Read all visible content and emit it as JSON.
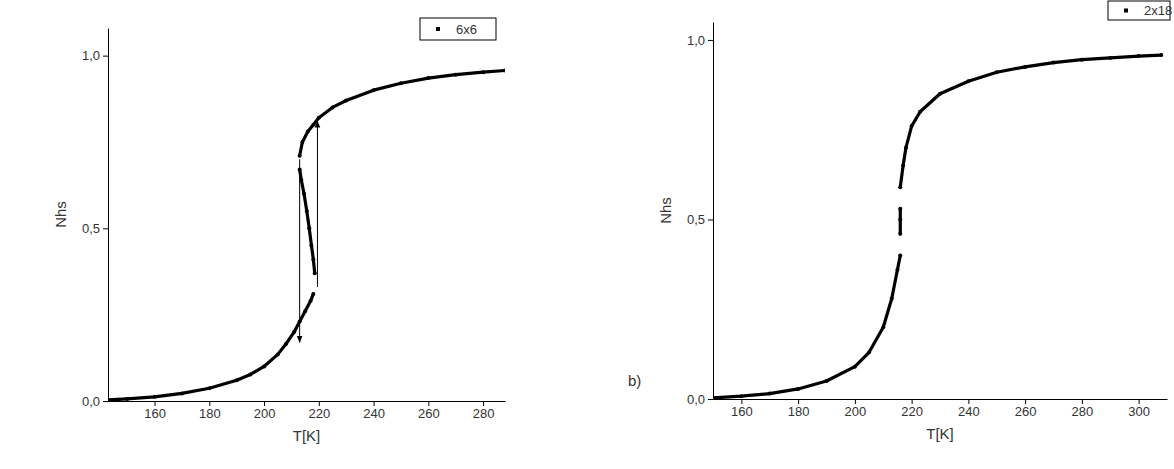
{
  "chart_data": [
    {
      "type": "scatter",
      "x_label": "T[K]",
      "y_label": "Nhs",
      "xlim": [
        143,
        288
      ],
      "ylim": [
        0,
        1.08
      ],
      "xticks": [
        160,
        180,
        200,
        220,
        240,
        260,
        280
      ],
      "yticks": [
        {
          "value": 0,
          "label": "0,0"
        },
        {
          "value": 0.5,
          "label": "0,5"
        },
        {
          "value": 1,
          "label": "1,0"
        }
      ],
      "legend": "upper right",
      "x": [
        143,
        150,
        160,
        170,
        180,
        190,
        195,
        200,
        205,
        208,
        211,
        213,
        215,
        217,
        218,
        null,
        218.5,
        218,
        217.3,
        216.5,
        215.6,
        214.6,
        213.6,
        213,
        null,
        213,
        214,
        216,
        218,
        220,
        225,
        230,
        240,
        250,
        260,
        270,
        280,
        288
      ],
      "series": [
        {
          "name": "6x6",
          "color": "#000000",
          "marker": "circle",
          "line_style": "solid",
          "values": [
            0.003,
            0.006,
            0.012,
            0.022,
            0.037,
            0.06,
            0.077,
            0.1,
            0.135,
            0.165,
            0.2,
            0.23,
            0.26,
            0.29,
            0.31,
            null,
            0.37,
            0.41,
            0.45,
            0.5,
            0.55,
            0.6,
            0.64,
            0.67,
            null,
            0.71,
            0.75,
            0.78,
            0.8,
            0.82,
            0.85,
            0.87,
            0.9,
            0.92,
            0.935,
            0.945,
            0.952,
            0.957
          ]
        }
      ],
      "arrows": [
        {
          "x": 213,
          "y_from": 0.7,
          "y_to": 0.17
        },
        {
          "x": 219.5,
          "y_from": 0.33,
          "y_to": 0.81
        }
      ]
    },
    {
      "type": "scatter",
      "x_label": "T[K]",
      "y_label": "Nhs",
      "annotations": [
        {
          "text": "b)"
        }
      ],
      "xlim": [
        150,
        310
      ],
      "ylim": [
        0,
        1.05
      ],
      "xticks": [
        160,
        180,
        200,
        220,
        240,
        260,
        280,
        300
      ],
      "yticks": [
        {
          "value": 0,
          "label": "0,0"
        },
        {
          "value": 0.5,
          "label": "0,5"
        },
        {
          "value": 1,
          "label": "1,0"
        }
      ],
      "legend": "upper right",
      "x": [
        150,
        160,
        170,
        180,
        190,
        200,
        205,
        210,
        213,
        215,
        216,
        null,
        216,
        216,
        216,
        null,
        216,
        217,
        218,
        220,
        223,
        230,
        240,
        250,
        260,
        270,
        280,
        290,
        300,
        308
      ],
      "series": [
        {
          "name": "2x18",
          "color": "#000000",
          "marker": "circle",
          "line_style": "solid",
          "values": [
            0.003,
            0.008,
            0.015,
            0.028,
            0.05,
            0.09,
            0.13,
            0.2,
            0.28,
            0.36,
            0.4,
            null,
            0.46,
            0.5,
            0.53,
            null,
            0.59,
            0.65,
            0.7,
            0.76,
            0.8,
            0.85,
            0.885,
            0.91,
            0.925,
            0.937,
            0.945,
            0.95,
            0.955,
            0.958
          ]
        }
      ]
    }
  ]
}
